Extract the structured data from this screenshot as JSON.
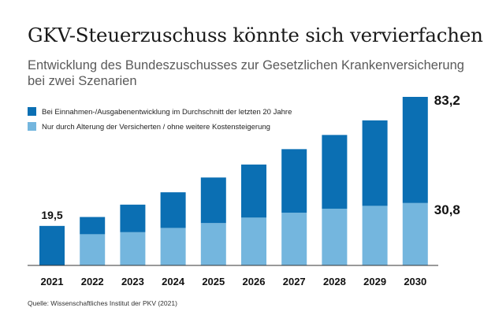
{
  "header": {
    "title": "GKV-Steuerzuschuss könnte sich vervierfachen",
    "subtitle": "Entwicklung des Bundeszuschusses zur Gesetzlichen Krankenversicherung bei zwei Szenarien"
  },
  "source": "Quelle: Wissenschaftliches Institut der PKV (2021)",
  "colors": {
    "dark": "#0b6fb3",
    "light": "#74b6de",
    "axis": "#333333"
  },
  "chart_data": {
    "type": "bar",
    "stacked": true,
    "categories": [
      "2021",
      "2022",
      "2023",
      "2024",
      "2025",
      "2026",
      "2027",
      "2028",
      "2029",
      "2030"
    ],
    "series": [
      {
        "name": "Nur durch Alterung der Versicherten / ohne weitere Kostensteigerung",
        "color": "#74b6de",
        "values": [
          0,
          15.4,
          16.4,
          18.5,
          20.9,
          23.6,
          26.0,
          28.0,
          29.4,
          30.8
        ]
      },
      {
        "name": "Bei Einnahmen-/Ausgabenentwicklung im Durchschnitt der letzten 20 Jahre",
        "color": "#0b6fb3",
        "values": [
          19.5,
          8.5,
          13.6,
          17.6,
          22.5,
          26.2,
          31.4,
          36.4,
          42.2,
          52.4
        ]
      }
    ],
    "totals": [
      19.5,
      23.9,
      30.0,
      36.1,
      43.4,
      49.8,
      57.4,
      64.4,
      71.6,
      83.2
    ],
    "annotations": [
      {
        "category": "2021",
        "text": "19,5"
      },
      {
        "category": "2030",
        "text": "83,2"
      },
      {
        "category": "2030",
        "text": "30,8"
      }
    ],
    "legend": [
      "Bei Einnahmen-/Ausgabenentwicklung im Durchschnitt der letzten 20 Jahre",
      "Nur durch Alterung der Versicherten / ohne weitere Kostensteigerung"
    ],
    "ylim": [
      0,
      83.2
    ],
    "grid": false,
    "legend_position": "top-left"
  }
}
